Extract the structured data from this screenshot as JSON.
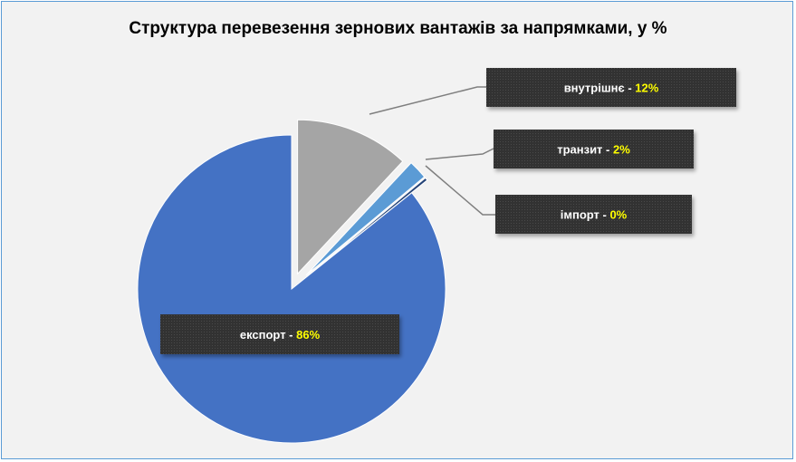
{
  "chart_data": {
    "type": "pie",
    "title": "Структура перевезення зернових вантажів за напрямками, у %",
    "slices": [
      {
        "name": "експорт",
        "value": 86,
        "label_value": "86%",
        "color": "#4472c4"
      },
      {
        "name": "внутрішнє",
        "value": 12,
        "label_value": "12%",
        "color": "#a5a5a5"
      },
      {
        "name": "транзит",
        "value": 2,
        "label_value": "2%",
        "color": "#5b9bd5"
      },
      {
        "name": "імпорт",
        "value": 0.3,
        "label_value": "0%",
        "color": "#264478"
      }
    ],
    "separator": " - ",
    "label_box_color": "#404040",
    "label_name_color": "#ffffff",
    "label_value_color": "#ffff00"
  }
}
